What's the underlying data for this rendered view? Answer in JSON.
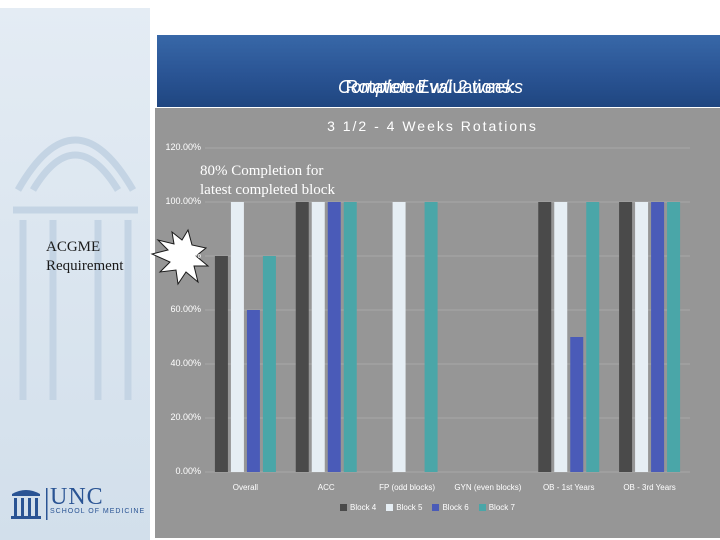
{
  "slide": {
    "title_plain": "Rotation Evaluations: ",
    "title_italic": "Completed w/i 2 weeks"
  },
  "colors": {
    "block4": "#4a4a4a",
    "block5": "#e6eef4",
    "block6": "#4a5bb8",
    "block7": "#4aa6a8",
    "title_bar": "#2a5494",
    "chart_bg": "#969696"
  },
  "annotations": {
    "completion_line1": "80% Completion for",
    "completion_line2": "latest completed block",
    "acgme_line1": "ACGME",
    "acgme_line2": "Requirement"
  },
  "logo": {
    "name": "UNC",
    "subtitle": "SCHOOL OF MEDICINE"
  },
  "chart_data": {
    "type": "bar",
    "title": "3 1/2 - 4 Weeks Rotations",
    "categories": [
      "Overall",
      "ACC",
      "FP (odd blocks)",
      "GYN (even blocks)",
      "OB - 1st Years",
      "OB - 3rd Years"
    ],
    "series": [
      {
        "name": "Block 4",
        "values": [
          80,
          100,
          null,
          null,
          100,
          100
        ]
      },
      {
        "name": "Block 5",
        "values": [
          100,
          100,
          100,
          null,
          100,
          100
        ]
      },
      {
        "name": "Block 6",
        "values": [
          60,
          100,
          null,
          null,
          50,
          100
        ]
      },
      {
        "name": "Block 7",
        "values": [
          80,
          100,
          100,
          null,
          100,
          100
        ]
      }
    ],
    "yticks": [
      "0.00%",
      "20.00%",
      "40.00%",
      "60.00%",
      "80.00%",
      "100.00%",
      "120.00%"
    ],
    "ylim": [
      0,
      120
    ],
    "xlabel": "",
    "ylabel": "",
    "grid": true,
    "legend_position": "bottom"
  }
}
